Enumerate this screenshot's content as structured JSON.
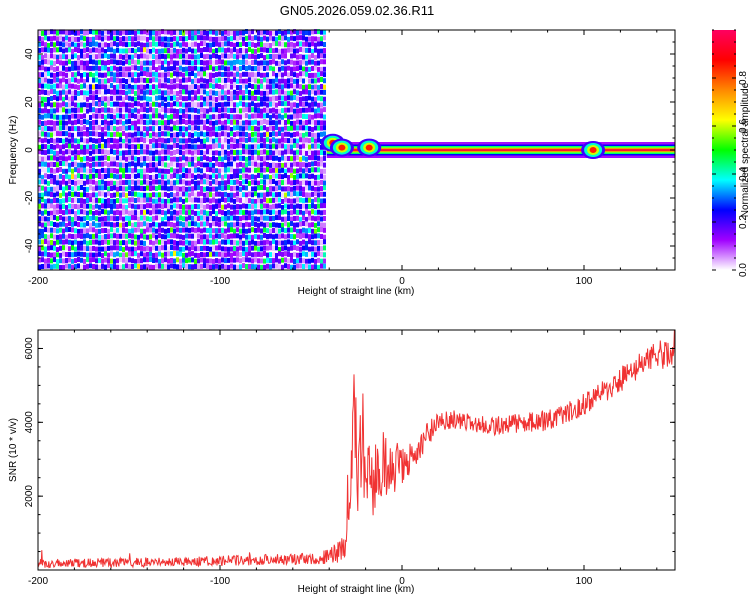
{
  "figure_title": "GN05.2026.059.02.36.R11",
  "chart_data": [
    {
      "type": "heatmap",
      "xlabel": "Height of straight line (km)",
      "ylabel": "Frequency (Hz)",
      "xlim": [
        -200,
        150
      ],
      "ylim": [
        -50,
        50
      ],
      "x_ticks": [
        -200,
        -100,
        0,
        100
      ],
      "x_tick_labels": [
        "-200",
        "-100",
        "0",
        "100"
      ],
      "y_ticks": [
        -40,
        -20,
        0,
        20,
        40
      ],
      "y_tick_labels": [
        "-40",
        "-20",
        "0",
        "20",
        "40"
      ],
      "grid": false,
      "noise_region": {
        "x_range": [
          -200,
          -43
        ],
        "y_range": [
          -50,
          50
        ],
        "typical_amplitude": 0.15
      },
      "signal_line": {
        "x_range": [
          -43,
          150
        ],
        "frequency": 0,
        "peak_amplitude": 0.95,
        "bright_spots": [
          {
            "x": -38,
            "y": 3
          },
          {
            "x": -33,
            "y": 1
          },
          {
            "x": -18,
            "y": 1
          },
          {
            "x": 105,
            "y": 0
          }
        ]
      },
      "colorbar": {
        "label": "Normalized spectral amplitude",
        "range": [
          0,
          1
        ],
        "ticks": [
          0.0,
          0.2,
          0.4,
          0.6,
          0.8
        ],
        "tick_labels": [
          "0.0",
          "0.2",
          "0.4",
          "0.6",
          "0.8"
        ],
        "colors": [
          "#ffffff",
          "#a000ff",
          "#0000ff",
          "#00ffff",
          "#00ff00",
          "#ffff00",
          "#ff8800",
          "#ff0000",
          "#ff0060"
        ]
      }
    },
    {
      "type": "line",
      "xlabel": "Height of straight line (km)",
      "ylabel": "SNR (10 * v/v)",
      "xlim": [
        -200,
        150
      ],
      "ylim": [
        0,
        6500
      ],
      "x_ticks": [
        -200,
        -100,
        0,
        100
      ],
      "x_tick_labels": [
        "-200",
        "-100",
        "0",
        "100"
      ],
      "y_ticks": [
        2000,
        4000,
        6000
      ],
      "y_tick_labels": [
        "2000",
        "4000",
        "6000"
      ],
      "grid": false,
      "series": [
        {
          "color": "#f03232",
          "x": [
            -200,
            -180,
            -160,
            -140,
            -120,
            -100,
            -80,
            -60,
            -45,
            -31,
            -30,
            -28,
            -26,
            -24,
            -22,
            -20,
            -18,
            -16,
            -14,
            -12,
            -10,
            -8,
            -6,
            -4,
            -2,
            0,
            2,
            5,
            10,
            15,
            20,
            25,
            30,
            40,
            50,
            60,
            70,
            80,
            90,
            100,
            110,
            120,
            130,
            140,
            150
          ],
          "y": [
            180,
            190,
            200,
            210,
            230,
            250,
            280,
            300,
            300,
            600,
            1800,
            3200,
            4200,
            2400,
            3900,
            2500,
            3600,
            2200,
            2900,
            2700,
            3100,
            2600,
            3000,
            2700,
            2900,
            2900,
            2950,
            3100,
            3400,
            3700,
            3950,
            4100,
            4050,
            3950,
            3900,
            3950,
            4000,
            4050,
            4200,
            4500,
            4800,
            5150,
            5500,
            5800,
            5900
          ],
          "noise": [
            120,
            120,
            120,
            130,
            130,
            140,
            150,
            150,
            150,
            400,
            900,
            1400,
            1400,
            1400,
            1300,
            1200,
            1100,
            1000,
            900,
            900,
            800,
            800,
            700,
            700,
            600,
            600,
            500,
            450,
            400,
            350,
            300,
            280,
            260,
            250,
            250,
            260,
            270,
            280,
            300,
            320,
            340,
            360,
            380,
            400,
            400
          ]
        }
      ]
    }
  ]
}
